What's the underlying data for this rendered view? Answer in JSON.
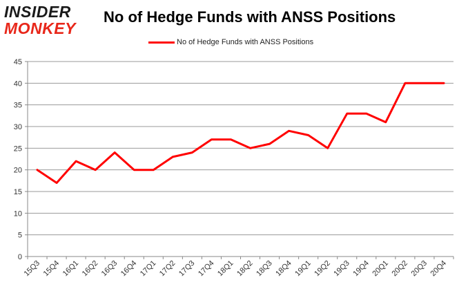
{
  "logo": {
    "line1": "INSIDER",
    "line2": "MONKEY"
  },
  "chart_data": {
    "type": "line",
    "title": "No of Hedge Funds with ANSS Positions",
    "categories": [
      "15Q3",
      "15Q4",
      "16Q1",
      "16Q2",
      "16Q3",
      "16Q4",
      "17Q1",
      "17Q2",
      "17Q3",
      "17Q4",
      "18Q1",
      "18Q2",
      "18Q3",
      "18Q4",
      "19Q1",
      "19Q2",
      "19Q3",
      "19Q4",
      "20Q1",
      "20Q2",
      "20Q3",
      "20Q4"
    ],
    "series": [
      {
        "name": "No of Hedge Funds with ANSS Positions",
        "color": "#ff0000",
        "values": [
          20,
          17,
          22,
          20,
          24,
          20,
          20,
          23,
          24,
          27,
          27,
          25,
          26,
          29,
          28,
          25,
          33,
          33,
          31,
          40,
          40,
          40
        ]
      }
    ],
    "ylim": [
      0,
      45
    ],
    "yticks": [
      0,
      5,
      10,
      15,
      20,
      25,
      30,
      35,
      40,
      45
    ],
    "grid": true,
    "legend_position": "top-center",
    "xlabel": "",
    "ylabel": ""
  }
}
